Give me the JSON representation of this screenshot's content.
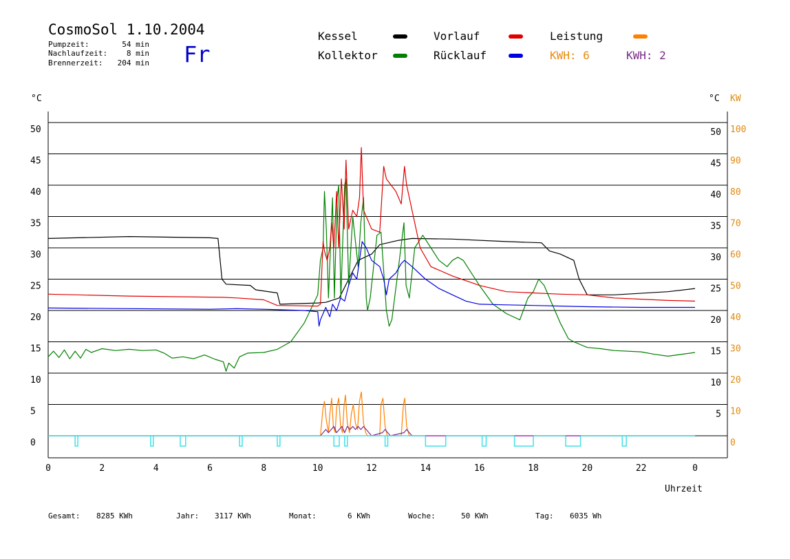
{
  "header": {
    "title": "CosmoSol 1.10.2004",
    "day": "Fr",
    "stats": [
      {
        "label": "Pumpzeit:",
        "value": "54 min"
      },
      {
        "label": "Nachlaufzeit:",
        "value": "8 min"
      },
      {
        "label": "Brennerzeit:",
        "value": "204 min"
      }
    ]
  },
  "legend": {
    "items": [
      {
        "label": "Kessel",
        "color": "#000000"
      },
      {
        "label": "Kollektor",
        "color": "#008000"
      },
      {
        "label": "Vorlauf",
        "color": "#e00000"
      },
      {
        "label": "Rücklauf",
        "color": "#0000e0"
      },
      {
        "label": "Leistung",
        "color": "#ff8000"
      }
    ],
    "kwh": [
      {
        "text": "KWH: 6",
        "color": "#e88a10"
      },
      {
        "text": "KWH: 2",
        "color": "#7a2a8a"
      }
    ]
  },
  "axes": {
    "left_unit": "°C",
    "right_unit": "°C",
    "right_unit2": "KW",
    "xlabel": "Uhrzeit",
    "xticks": [
      "0",
      "2",
      "4",
      "6",
      "8",
      "10",
      "12",
      "14",
      "16",
      "18",
      "20",
      "22",
      "0"
    ],
    "yticks": [
      "0",
      "5",
      "10",
      "15",
      "20",
      "25",
      "30",
      "35",
      "40",
      "45",
      "50"
    ],
    "yticks_right": [
      "5",
      "10",
      "15",
      "20",
      "25",
      "30",
      "35",
      "40",
      "45",
      "50"
    ],
    "yticks_kw": [
      "0",
      "10",
      "20",
      "30",
      "40",
      "50",
      "60",
      "70",
      "80",
      "90",
      "100"
    ]
  },
  "footer": [
    {
      "label": "Gesamt:",
      "value": "8285 KWh"
    },
    {
      "label": "Jahr:",
      "value": "3117 KWh"
    },
    {
      "label": "Monat:",
      "value": "6 KWh"
    },
    {
      "label": "Woche:",
      "value": "50 KWh"
    },
    {
      "label": "Tag:",
      "value": "6035 Wh"
    }
  ],
  "chart_data": {
    "type": "line",
    "xlim": [
      0,
      24
    ],
    "ylim": [
      0,
      50
    ],
    "ylim_kw": [
      0,
      100
    ],
    "grid": true,
    "series": [
      {
        "name": "Kessel",
        "color": "#000000",
        "points": [
          [
            0,
            31.5
          ],
          [
            3,
            31.8
          ],
          [
            6,
            31.6
          ],
          [
            6.3,
            31.5
          ],
          [
            6.45,
            25
          ],
          [
            6.6,
            24.2
          ],
          [
            7.5,
            24
          ],
          [
            7.7,
            23.3
          ],
          [
            8.5,
            22.8
          ],
          [
            8.6,
            21
          ],
          [
            10,
            21.2
          ],
          [
            10.3,
            21.3
          ],
          [
            10.8,
            22
          ],
          [
            11.5,
            28
          ],
          [
            12,
            29
          ],
          [
            12.3,
            30.5
          ],
          [
            13,
            31.2
          ],
          [
            13.5,
            31.5
          ],
          [
            15,
            31.4
          ],
          [
            17,
            31
          ],
          [
            18.3,
            30.8
          ],
          [
            18.6,
            29.5
          ],
          [
            19,
            29
          ],
          [
            19.5,
            28
          ],
          [
            19.7,
            25
          ],
          [
            20,
            22.5
          ],
          [
            21,
            22.5
          ],
          [
            23,
            23
          ],
          [
            24,
            23.5
          ]
        ]
      },
      {
        "name": "Kollektor",
        "color": "#008000",
        "points": [
          [
            0,
            12.6
          ],
          [
            0.2,
            13.5
          ],
          [
            0.4,
            12.5
          ],
          [
            0.6,
            13.7
          ],
          [
            0.8,
            12.3
          ],
          [
            1,
            13.5
          ],
          [
            1.2,
            12.4
          ],
          [
            1.4,
            13.8
          ],
          [
            1.6,
            13.3
          ],
          [
            2,
            13.9
          ],
          [
            2.5,
            13.6
          ],
          [
            3,
            13.8
          ],
          [
            3.5,
            13.6
          ],
          [
            4,
            13.7
          ],
          [
            4.3,
            13.2
          ],
          [
            4.6,
            12.4
          ],
          [
            5,
            12.6
          ],
          [
            5.4,
            12.3
          ],
          [
            5.8,
            12.9
          ],
          [
            6.2,
            12.2
          ],
          [
            6.5,
            11.8
          ],
          [
            6.6,
            10.3
          ],
          [
            6.7,
            11.6
          ],
          [
            6.9,
            10.8
          ],
          [
            7.1,
            12.6
          ],
          [
            7.4,
            13.2
          ],
          [
            8,
            13.3
          ],
          [
            8.5,
            13.8
          ],
          [
            9,
            15
          ],
          [
            9.5,
            18
          ],
          [
            10,
            22.5
          ],
          [
            10.1,
            28
          ],
          [
            10.2,
            30
          ],
          [
            10.25,
            39
          ],
          [
            10.32,
            33
          ],
          [
            10.4,
            22
          ],
          [
            10.5,
            33
          ],
          [
            10.55,
            38
          ],
          [
            10.62,
            22
          ],
          [
            10.72,
            38
          ],
          [
            10.78,
            40
          ],
          [
            10.86,
            22
          ],
          [
            11,
            40
          ],
          [
            11.05,
            41
          ],
          [
            11.15,
            24
          ],
          [
            11.3,
            35
          ],
          [
            11.5,
            27
          ],
          [
            11.6,
            34
          ],
          [
            11.7,
            38
          ],
          [
            11.8,
            22
          ],
          [
            11.85,
            20
          ],
          [
            11.95,
            22
          ],
          [
            12.2,
            32
          ],
          [
            12.35,
            32.5
          ],
          [
            12.55,
            20
          ],
          [
            12.65,
            17.5
          ],
          [
            12.75,
            18.5
          ],
          [
            13,
            27
          ],
          [
            13.2,
            34
          ],
          [
            13.28,
            24
          ],
          [
            13.4,
            22
          ],
          [
            13.6,
            30
          ],
          [
            13.9,
            32
          ],
          [
            14.2,
            30
          ],
          [
            14.5,
            28
          ],
          [
            14.8,
            27
          ],
          [
            15,
            28
          ],
          [
            15.2,
            28.5
          ],
          [
            15.4,
            28
          ],
          [
            15.7,
            26
          ],
          [
            16,
            24
          ],
          [
            16.5,
            21
          ],
          [
            17,
            19.5
          ],
          [
            17.5,
            18.5
          ],
          [
            17.8,
            22
          ],
          [
            18,
            23
          ],
          [
            18.2,
            25
          ],
          [
            18.4,
            24
          ],
          [
            18.7,
            21
          ],
          [
            19,
            18
          ],
          [
            19.3,
            15.5
          ],
          [
            19.5,
            15
          ],
          [
            20,
            14.1
          ],
          [
            20.5,
            13.9
          ],
          [
            21,
            13.6
          ],
          [
            22,
            13.4
          ],
          [
            22.5,
            13
          ],
          [
            23,
            12.7
          ],
          [
            24,
            13.3
          ]
        ]
      },
      {
        "name": "Vorlauf",
        "color": "#e00000",
        "points": [
          [
            0,
            22.6
          ],
          [
            3,
            22.3
          ],
          [
            6.5,
            22.1
          ],
          [
            7,
            22
          ],
          [
            8,
            21.7
          ],
          [
            8.5,
            20.8
          ],
          [
            10,
            20.7
          ],
          [
            10.1,
            21
          ],
          [
            10.2,
            31
          ],
          [
            10.25,
            29.5
          ],
          [
            10.35,
            28
          ],
          [
            10.45,
            30
          ],
          [
            10.52,
            34
          ],
          [
            10.6,
            30
          ],
          [
            10.7,
            39
          ],
          [
            10.78,
            30
          ],
          [
            10.88,
            41
          ],
          [
            10.98,
            33
          ],
          [
            11.05,
            44
          ],
          [
            11.15,
            33
          ],
          [
            11.3,
            36
          ],
          [
            11.45,
            35
          ],
          [
            11.55,
            38
          ],
          [
            11.62,
            46
          ],
          [
            11.7,
            36
          ],
          [
            12,
            33
          ],
          [
            12.3,
            32.5
          ],
          [
            12.45,
            43
          ],
          [
            12.55,
            41
          ],
          [
            12.9,
            39
          ],
          [
            13.1,
            37
          ],
          [
            13.22,
            43
          ],
          [
            13.3,
            40
          ],
          [
            13.8,
            30
          ],
          [
            14.2,
            27
          ],
          [
            15,
            25.5
          ],
          [
            16,
            24
          ],
          [
            17,
            23
          ],
          [
            18,
            22.8
          ],
          [
            19,
            22.6
          ],
          [
            20,
            22.5
          ],
          [
            21,
            22
          ],
          [
            22,
            21.8
          ],
          [
            23,
            21.6
          ],
          [
            24,
            21.5
          ]
        ]
      },
      {
        "name": "Rücklauf",
        "color": "#0000e0",
        "points": [
          [
            0,
            20.4
          ],
          [
            3,
            20.3
          ],
          [
            6,
            20.2
          ],
          [
            7,
            20.3
          ],
          [
            8,
            20.2
          ],
          [
            9.5,
            20
          ],
          [
            10,
            19.8
          ],
          [
            10.05,
            17.5
          ],
          [
            10.1,
            18.5
          ],
          [
            10.3,
            20.5
          ],
          [
            10.45,
            19
          ],
          [
            10.55,
            21
          ],
          [
            10.7,
            20
          ],
          [
            10.85,
            22
          ],
          [
            11.0,
            21.5
          ],
          [
            11.15,
            24
          ],
          [
            11.3,
            26
          ],
          [
            11.45,
            25
          ],
          [
            11.55,
            28
          ],
          [
            11.65,
            31
          ],
          [
            11.8,
            30
          ],
          [
            12,
            28
          ],
          [
            12.3,
            27
          ],
          [
            12.45,
            25
          ],
          [
            12.55,
            22.5
          ],
          [
            12.65,
            25
          ],
          [
            12.9,
            26
          ],
          [
            13.1,
            27.5
          ],
          [
            13.22,
            28
          ],
          [
            13.5,
            27
          ],
          [
            14,
            25
          ],
          [
            14.5,
            23.5
          ],
          [
            15,
            22.5
          ],
          [
            15.5,
            21.5
          ],
          [
            16,
            21
          ],
          [
            17,
            20.9
          ],
          [
            18,
            20.8
          ],
          [
            19,
            20.7
          ],
          [
            20,
            20.6
          ],
          [
            22,
            20.5
          ],
          [
            24,
            20.5
          ]
        ]
      },
      {
        "name": "Leistung",
        "color": "#ff8000",
        "axis": "kw",
        "points": [
          [
            0,
            0
          ],
          [
            10.1,
            0
          ],
          [
            10.2,
            9
          ],
          [
            10.25,
            11
          ],
          [
            10.32,
            5
          ],
          [
            10.4,
            1
          ],
          [
            10.45,
            7
          ],
          [
            10.52,
            12
          ],
          [
            10.58,
            3
          ],
          [
            10.65,
            1
          ],
          [
            10.7,
            9
          ],
          [
            10.78,
            12
          ],
          [
            10.85,
            3
          ],
          [
            10.92,
            1
          ],
          [
            10.98,
            10
          ],
          [
            11.03,
            13
          ],
          [
            11.1,
            4
          ],
          [
            11.18,
            1
          ],
          [
            11.25,
            7
          ],
          [
            11.32,
            10
          ],
          [
            11.4,
            4
          ],
          [
            11.48,
            2
          ],
          [
            11.55,
            11
          ],
          [
            11.62,
            14
          ],
          [
            11.7,
            4
          ],
          [
            11.78,
            1
          ],
          [
            11.85,
            0
          ],
          [
            12.3,
            0
          ],
          [
            12.35,
            10
          ],
          [
            12.42,
            12
          ],
          [
            12.5,
            3
          ],
          [
            12.58,
            0
          ],
          [
            13.1,
            0
          ],
          [
            13.18,
            10
          ],
          [
            13.23,
            12
          ],
          [
            13.3,
            3
          ],
          [
            13.4,
            0
          ],
          [
            24,
            0
          ]
        ]
      },
      {
        "name": "Pumpe",
        "color": "#7a2a8a",
        "axis": "kw",
        "points": [
          [
            0,
            0
          ],
          [
            10.1,
            0
          ],
          [
            10.2,
            1
          ],
          [
            10.3,
            2
          ],
          [
            10.4,
            1
          ],
          [
            10.5,
            2
          ],
          [
            10.6,
            3
          ],
          [
            10.7,
            1
          ],
          [
            10.8,
            2
          ],
          [
            10.9,
            3
          ],
          [
            11.0,
            1
          ],
          [
            11.1,
            3
          ],
          [
            11.2,
            2
          ],
          [
            11.3,
            3
          ],
          [
            11.4,
            2
          ],
          [
            11.5,
            3
          ],
          [
            11.6,
            2
          ],
          [
            11.7,
            3
          ],
          [
            11.8,
            2
          ],
          [
            11.9,
            1
          ],
          [
            12.0,
            0
          ],
          [
            12.4,
            1
          ],
          [
            12.5,
            2
          ],
          [
            12.6,
            1
          ],
          [
            12.7,
            0
          ],
          [
            13.2,
            1
          ],
          [
            13.3,
            2
          ],
          [
            13.4,
            1
          ],
          [
            13.5,
            0
          ],
          [
            24,
            0
          ]
        ]
      }
    ],
    "brenner_pulses": [
      {
        "start": 1.0,
        "end": 1.1,
        "level": 1
      },
      {
        "start": 3.8,
        "end": 3.9,
        "level": 1
      },
      {
        "start": 4.9,
        "end": 5.1,
        "level": 1
      },
      {
        "start": 7.1,
        "end": 7.2,
        "level": 1
      },
      {
        "start": 8.5,
        "end": 8.6,
        "level": 1
      },
      {
        "start": 10.6,
        "end": 10.8,
        "level": 1
      },
      {
        "start": 11.0,
        "end": 11.1,
        "level": 1
      },
      {
        "start": 12.5,
        "end": 12.6,
        "level": 1
      },
      {
        "start": 14.0,
        "end": 14.75,
        "level": 1
      },
      {
        "start": 16.1,
        "end": 16.25,
        "level": 1
      },
      {
        "start": 17.3,
        "end": 18.0,
        "level": 1
      },
      {
        "start": 19.2,
        "end": 19.75,
        "level": 1
      },
      {
        "start": 21.3,
        "end": 21.45,
        "level": 1
      }
    ],
    "brenner_color": "#40e0e8",
    "brenner_edge_color": "#cc44cc"
  }
}
